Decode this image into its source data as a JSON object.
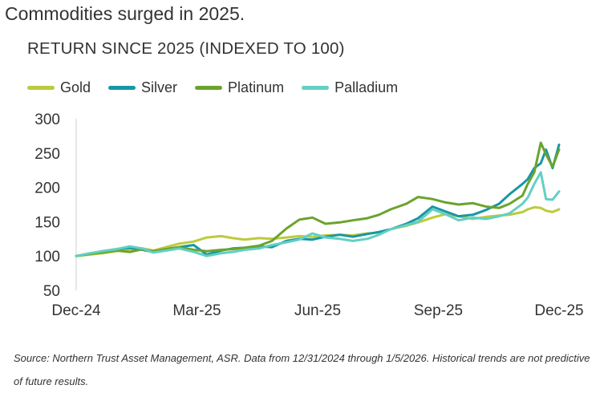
{
  "page": {
    "headline": "Commodities surged in 2025.",
    "subhead": "RETURN SINCE 2025 (INDEXED TO 100)",
    "source_note": "Source: Northern Trust Asset Management, ASR. Data from 12/31/2024 through 1/5/2026. Historical trends are not predictive of future results."
  },
  "chart_data": {
    "type": "line",
    "title": "RETURN SINCE 2025 (INDEXED TO 100)",
    "xlabel": "",
    "ylabel": "",
    "ylim": [
      50,
      300
    ],
    "yticks": [
      50,
      100,
      150,
      200,
      250,
      300
    ],
    "x_ticks": [
      "Dec-24",
      "Mar-25",
      "Jun-25",
      "Sep-25",
      "Dec-25"
    ],
    "x": [
      "2024-12-31",
      "2025-01-10",
      "2025-01-20",
      "2025-01-31",
      "2025-02-10",
      "2025-02-20",
      "2025-02-28",
      "2025-03-10",
      "2025-03-20",
      "2025-03-31",
      "2025-04-10",
      "2025-04-21",
      "2025-04-30",
      "2025-05-09",
      "2025-05-20",
      "2025-05-30",
      "2025-06-10",
      "2025-06-20",
      "2025-06-30",
      "2025-07-10",
      "2025-07-21",
      "2025-07-31",
      "2025-08-11",
      "2025-08-20",
      "2025-08-29",
      "2025-09-10",
      "2025-09-19",
      "2025-09-30",
      "2025-10-10",
      "2025-10-20",
      "2025-10-31",
      "2025-11-10",
      "2025-11-20",
      "2025-11-28",
      "2025-12-08",
      "2025-12-12",
      "2025-12-17",
      "2025-12-22",
      "2025-12-26",
      "2025-12-31",
      "2026-01-05"
    ],
    "series": [
      {
        "name": "Gold",
        "color": "#bccb3c",
        "values": [
          100,
          102,
          104,
          107,
          110,
          111,
          108,
          113,
          118,
          121,
          127,
          129,
          126,
          124,
          126,
          125,
          127,
          129,
          128,
          130,
          131,
          130,
          133,
          134,
          139,
          144,
          149,
          156,
          161,
          158,
          154,
          157,
          159,
          160,
          164,
          168,
          171,
          170,
          166,
          164,
          168
        ]
      },
      {
        "name": "Silver",
        "color": "#1797a6",
        "values": [
          100,
          103,
          107,
          110,
          112,
          109,
          106,
          110,
          113,
          116,
          102,
          108,
          111,
          112,
          114,
          113,
          122,
          125,
          124,
          128,
          131,
          128,
          132,
          135,
          139,
          147,
          155,
          172,
          165,
          158,
          160,
          167,
          176,
          190,
          205,
          212,
          228,
          235,
          255,
          228,
          262
        ]
      },
      {
        "name": "Platinum",
        "color": "#6aa42c",
        "values": [
          100,
          103,
          105,
          108,
          106,
          110,
          107,
          110,
          113,
          109,
          107,
          109,
          110,
          112,
          115,
          122,
          140,
          153,
          156,
          147,
          149,
          152,
          155,
          160,
          168,
          176,
          186,
          183,
          178,
          175,
          177,
          172,
          170,
          176,
          188,
          205,
          222,
          265,
          248,
          230,
          255
        ]
      },
      {
        "name": "Palladium",
        "color": "#64cfc3",
        "values": [
          100,
          104,
          107,
          110,
          114,
          111,
          105,
          108,
          111,
          106,
          100,
          104,
          106,
          109,
          111,
          116,
          120,
          124,
          133,
          127,
          125,
          122,
          125,
          131,
          139,
          145,
          150,
          168,
          161,
          152,
          156,
          154,
          158,
          162,
          176,
          185,
          205,
          222,
          183,
          182,
          194
        ]
      }
    ],
    "grid": false,
    "legend_position": "top"
  }
}
